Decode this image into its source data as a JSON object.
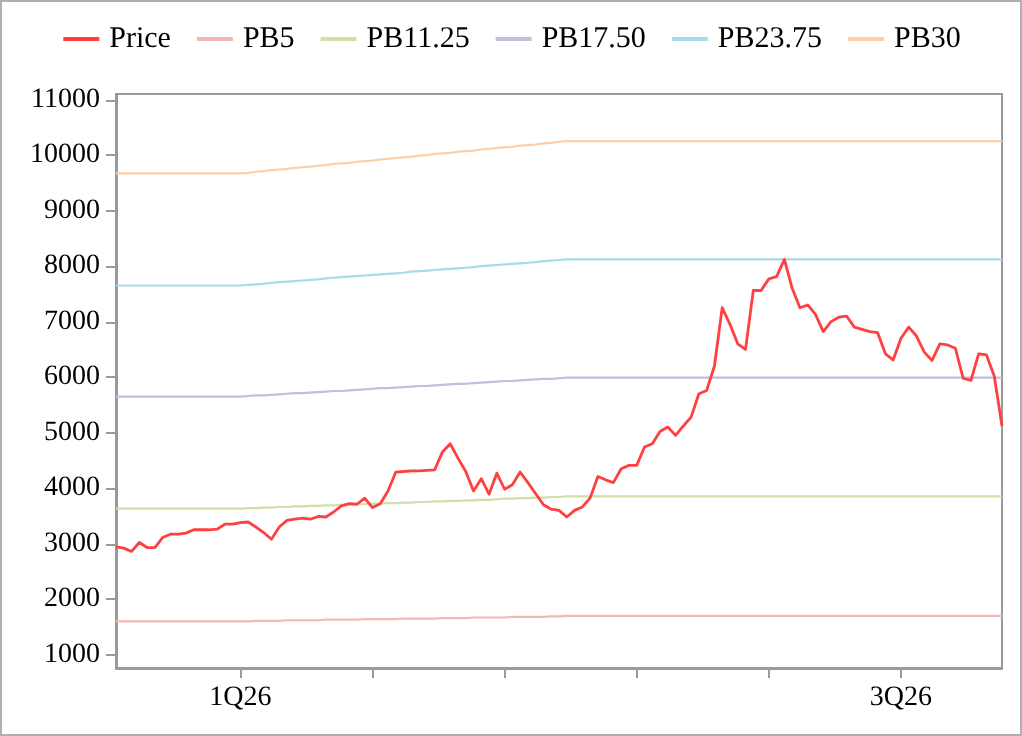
{
  "chart_data": {
    "type": "line",
    "categories": [
      null,
      null,
      null,
      null,
      null,
      null,
      null,
      null,
      null,
      null,
      null,
      null,
      null,
      null,
      null,
      null,
      "1Q26",
      null,
      null,
      null,
      null,
      null,
      null,
      null,
      null,
      null,
      null,
      null,
      null,
      null,
      null,
      null,
      null,
      null,
      null,
      null,
      null,
      null,
      null,
      null,
      null,
      null,
      null,
      null,
      null,
      null,
      null,
      null,
      null,
      null,
      null,
      null,
      null,
      null,
      null,
      null,
      null,
      null,
      null,
      null,
      null,
      null,
      null,
      null,
      null,
      null,
      null,
      null,
      null,
      null,
      null,
      null,
      null,
      null,
      null,
      null,
      null,
      null,
      null,
      null,
      null,
      null,
      null,
      null,
      null,
      null,
      null,
      null,
      null,
      null,
      null,
      null,
      null,
      null,
      null,
      null,
      null,
      null,
      null,
      null,
      null,
      "3Q26",
      null,
      null,
      null,
      null,
      null,
      null,
      null,
      null,
      null,
      null,
      null,
      null,
      null
    ],
    "series": [
      {
        "name": "Price",
        "color": "#ff4040",
        "values": [
          2940,
          2920,
          2860,
          3020,
          2930,
          2930,
          3110,
          3170,
          3170,
          3190,
          3250,
          3250,
          3250,
          3260,
          3350,
          3350,
          3380,
          3390,
          3300,
          3200,
          3080,
          3300,
          3420,
          3440,
          3460,
          3440,
          3490,
          3480,
          3570,
          3680,
          3720,
          3710,
          3820,
          3650,
          3720,
          3950,
          4290,
          4300,
          4310,
          4310,
          4320,
          4330,
          4650,
          4800,
          4540,
          4300,
          3950,
          4170,
          3890,
          4270,
          3980,
          4060,
          4290,
          4100,
          3900,
          3700,
          3620,
          3600,
          3480,
          3600,
          3660,
          3820,
          4210,
          4150,
          4100,
          4350,
          4410,
          4410,
          4740,
          4800,
          5020,
          5100,
          4950,
          5120,
          5280,
          5700,
          5760,
          6200,
          7250,
          6950,
          6600,
          6500,
          7560,
          7560,
          7770,
          7810,
          8120,
          7600,
          7250,
          7300,
          7130,
          6820,
          7000,
          7080,
          7100,
          6900,
          6860,
          6820,
          6800,
          6420,
          6310,
          6700,
          6900,
          6740,
          6450,
          6300,
          6600,
          6580,
          6520,
          5980,
          5940,
          6420,
          6400,
          6020,
          5120
        ]
      },
      {
        "name": "PB5",
        "color": "#f2b8b8",
        "values": [
          1600,
          1600,
          1600,
          1600,
          1600,
          1600,
          1600,
          1600,
          1600,
          1600,
          1600,
          1600,
          1600,
          1600,
          1600,
          1600,
          1600,
          1600,
          1610,
          1610,
          1610,
          1610,
          1620,
          1620,
          1620,
          1620,
          1620,
          1630,
          1630,
          1630,
          1630,
          1630,
          1640,
          1640,
          1640,
          1640,
          1640,
          1650,
          1650,
          1650,
          1650,
          1650,
          1660,
          1660,
          1660,
          1660,
          1670,
          1670,
          1670,
          1670,
          1670,
          1680,
          1680,
          1680,
          1680,
          1680,
          1690,
          1690,
          1700,
          1700,
          1700,
          1700,
          1700,
          1700,
          1700,
          1700,
          1700,
          1700,
          1700,
          1700,
          1700,
          1700,
          1700,
          1700,
          1700,
          1700,
          1700,
          1700,
          1700,
          1700,
          1700,
          1700,
          1700,
          1700,
          1700,
          1700,
          1700,
          1700,
          1700,
          1700,
          1700,
          1700,
          1700,
          1700,
          1700,
          1700,
          1700,
          1700,
          1700,
          1700,
          1700,
          1700,
          1700,
          1700,
          1700,
          1700,
          1700,
          1700,
          1700,
          1700,
          1700,
          1700,
          1700,
          1700,
          1700
        ]
      },
      {
        "name": "PB11.25",
        "color": "#cfe0a8",
        "values": [
          3630,
          3630,
          3630,
          3630,
          3630,
          3630,
          3630,
          3630,
          3630,
          3630,
          3630,
          3630,
          3630,
          3630,
          3630,
          3630,
          3630,
          3640,
          3640,
          3650,
          3650,
          3660,
          3660,
          3670,
          3670,
          3680,
          3680,
          3690,
          3690,
          3700,
          3700,
          3710,
          3710,
          3720,
          3720,
          3730,
          3730,
          3740,
          3740,
          3750,
          3750,
          3760,
          3760,
          3770,
          3770,
          3780,
          3780,
          3790,
          3790,
          3800,
          3810,
          3810,
          3820,
          3820,
          3830,
          3830,
          3840,
          3840,
          3850,
          3850,
          3850,
          3850,
          3850,
          3850,
          3850,
          3850,
          3850,
          3850,
          3850,
          3850,
          3850,
          3850,
          3850,
          3850,
          3850,
          3850,
          3850,
          3850,
          3850,
          3850,
          3850,
          3850,
          3850,
          3850,
          3850,
          3850,
          3850,
          3850,
          3850,
          3850,
          3850,
          3850,
          3850,
          3850,
          3850,
          3850,
          3850,
          3850,
          3850,
          3850,
          3850,
          3850,
          3850,
          3850,
          3850,
          3850,
          3850,
          3850,
          3850,
          3850,
          3850,
          3850,
          3850,
          3850,
          3850
        ]
      },
      {
        "name": "PB17.50",
        "color": "#c6bcdc",
        "values": [
          5650,
          5650,
          5650,
          5650,
          5650,
          5650,
          5650,
          5650,
          5650,
          5650,
          5650,
          5650,
          5650,
          5650,
          5650,
          5650,
          5650,
          5660,
          5670,
          5670,
          5680,
          5690,
          5700,
          5710,
          5710,
          5720,
          5730,
          5740,
          5750,
          5750,
          5760,
          5770,
          5780,
          5790,
          5800,
          5800,
          5810,
          5820,
          5830,
          5840,
          5840,
          5850,
          5860,
          5870,
          5880,
          5880,
          5890,
          5900,
          5910,
          5920,
          5930,
          5930,
          5940,
          5950,
          5960,
          5970,
          5970,
          5980,
          5990,
          5990,
          5990,
          5990,
          5990,
          5990,
          5990,
          5990,
          5990,
          5990,
          5990,
          5990,
          5990,
          5990,
          5990,
          5990,
          5990,
          5990,
          5990,
          5990,
          5990,
          5990,
          5990,
          5990,
          5990,
          5990,
          5990,
          5990,
          5990,
          5990,
          5990,
          5990,
          5990,
          5990,
          5990,
          5990,
          5990,
          5990,
          5990,
          5990,
          5990,
          5990,
          5990,
          5990,
          5990,
          5990,
          5990,
          5990,
          5990,
          5990,
          5990,
          5990,
          5990,
          5990,
          5990,
          5990,
          5990
        ]
      },
      {
        "name": "PB23.75",
        "color": "#a8dbe8",
        "values": [
          7650,
          7650,
          7650,
          7650,
          7650,
          7650,
          7650,
          7650,
          7650,
          7650,
          7650,
          7650,
          7650,
          7650,
          7650,
          7650,
          7650,
          7660,
          7670,
          7680,
          7700,
          7710,
          7720,
          7730,
          7740,
          7750,
          7760,
          7780,
          7790,
          7800,
          7810,
          7820,
          7830,
          7840,
          7850,
          7860,
          7870,
          7880,
          7900,
          7910,
          7920,
          7930,
          7940,
          7950,
          7960,
          7970,
          7980,
          8000,
          8010,
          8020,
          8030,
          8040,
          8050,
          8060,
          8070,
          8090,
          8100,
          8110,
          8120,
          8120,
          8120,
          8120,
          8120,
          8120,
          8120,
          8120,
          8120,
          8120,
          8120,
          8120,
          8120,
          8120,
          8120,
          8120,
          8120,
          8120,
          8120,
          8120,
          8120,
          8120,
          8120,
          8120,
          8120,
          8120,
          8120,
          8120,
          8120,
          8120,
          8120,
          8120,
          8120,
          8120,
          8120,
          8120,
          8120,
          8120,
          8120,
          8120,
          8120,
          8120,
          8120,
          8120,
          8120,
          8120,
          8120,
          8120,
          8120,
          8120,
          8120,
          8120,
          8120,
          8120,
          8120,
          8120,
          8120
        ]
      },
      {
        "name": "PB30",
        "color": "#fbd0a8",
        "values": [
          9670,
          9670,
          9670,
          9670,
          9670,
          9670,
          9670,
          9670,
          9670,
          9670,
          9670,
          9670,
          9670,
          9670,
          9670,
          9670,
          9670,
          9680,
          9700,
          9710,
          9730,
          9740,
          9750,
          9770,
          9780,
          9790,
          9810,
          9820,
          9840,
          9850,
          9860,
          9880,
          9890,
          9900,
          9920,
          9930,
          9950,
          9960,
          9970,
          9990,
          10000,
          10020,
          10030,
          10040,
          10060,
          10070,
          10080,
          10100,
          10110,
          10130,
          10140,
          10150,
          10170,
          10180,
          10190,
          10210,
          10220,
          10240,
          10250,
          10250,
          10250,
          10250,
          10250,
          10250,
          10250,
          10250,
          10250,
          10250,
          10250,
          10250,
          10250,
          10250,
          10250,
          10250,
          10250,
          10250,
          10250,
          10250,
          10250,
          10250,
          10250,
          10250,
          10250,
          10250,
          10250,
          10250,
          10250,
          10250,
          10250,
          10250,
          10250,
          10250,
          10250,
          10250,
          10250,
          10250,
          10250,
          10250,
          10250,
          10250,
          10250,
          10250,
          10250,
          10250,
          10250,
          10250,
          10250,
          10250,
          10250,
          10250,
          10250,
          10250,
          10250,
          10250,
          10250
        ]
      }
    ],
    "ylim": [
      760,
      11100
    ],
    "yticks": [
      1000,
      2000,
      3000,
      4000,
      5000,
      6000,
      7000,
      8000,
      9000,
      10000,
      11000
    ],
    "grid": false,
    "legend": "top",
    "marker": "none",
    "line_style": "solid"
  }
}
